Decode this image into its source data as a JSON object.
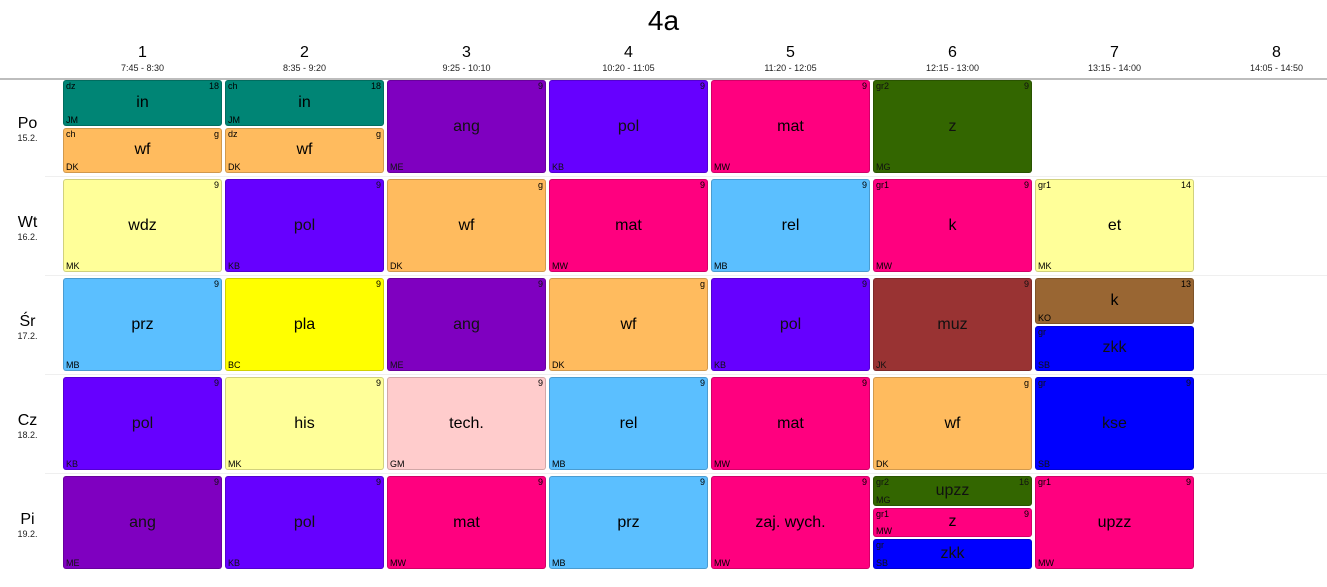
{
  "title": "4a",
  "periods": [
    {
      "num": "1",
      "time": "7:45 - 8:30"
    },
    {
      "num": "2",
      "time": "8:35 - 9:20"
    },
    {
      "num": "3",
      "time": "9:25 - 10:10"
    },
    {
      "num": "4",
      "time": "10:20 - 11:05"
    },
    {
      "num": "5",
      "time": "11:20 - 12:05"
    },
    {
      "num": "6",
      "time": "12:15 - 13:00"
    },
    {
      "num": "7",
      "time": "13:15 - 14:00"
    },
    {
      "num": "8",
      "time": "14:05 - 14:50"
    }
  ],
  "days": [
    {
      "name": "Po",
      "date": "15.2."
    },
    {
      "name": "Wt",
      "date": "16.2."
    },
    {
      "name": "Śr",
      "date": "17.2."
    },
    {
      "name": "Cz",
      "date": "18.2."
    },
    {
      "name": "Pi",
      "date": "19.2."
    }
  ],
  "lessons": [
    {
      "day": 0,
      "period": 0,
      "part": 0,
      "parts": 2,
      "subject": "in",
      "group": "dz",
      "room": "18",
      "teacher": "JM",
      "color": "#008575"
    },
    {
      "day": 0,
      "period": 0,
      "part": 1,
      "parts": 2,
      "subject": "wf",
      "group": "ch",
      "room": "g",
      "teacher": "DK",
      "color": "#ffbb5e"
    },
    {
      "day": 0,
      "period": 1,
      "part": 0,
      "parts": 2,
      "subject": "in",
      "group": "ch",
      "room": "18",
      "teacher": "JM",
      "color": "#008575"
    },
    {
      "day": 0,
      "period": 1,
      "part": 1,
      "parts": 2,
      "subject": "wf",
      "group": "dz",
      "room": "g",
      "teacher": "DK",
      "color": "#ffbb5e"
    },
    {
      "day": 0,
      "period": 2,
      "part": 0,
      "parts": 1,
      "subject": "ang",
      "group": "",
      "room": "9",
      "teacher": "ME",
      "color": "#7f00c0"
    },
    {
      "day": 0,
      "period": 3,
      "part": 0,
      "parts": 1,
      "subject": "pol",
      "group": "",
      "room": "9",
      "teacher": "KB",
      "color": "#6600ff"
    },
    {
      "day": 0,
      "period": 4,
      "part": 0,
      "parts": 1,
      "subject": "mat",
      "group": "",
      "room": "9",
      "teacher": "MW",
      "color": "#ff007f"
    },
    {
      "day": 0,
      "period": 5,
      "part": 0,
      "parts": 1,
      "subject": "z",
      "group": "gr2",
      "room": "9",
      "teacher": "MG",
      "color": "#336600"
    },
    {
      "day": 1,
      "period": 0,
      "part": 0,
      "parts": 1,
      "subject": "wdz",
      "group": "",
      "room": "9",
      "teacher": "MK",
      "color": "#ffff99"
    },
    {
      "day": 1,
      "period": 1,
      "part": 0,
      "parts": 1,
      "subject": "pol",
      "group": "",
      "room": "9",
      "teacher": "KB",
      "color": "#6600ff"
    },
    {
      "day": 1,
      "period": 2,
      "part": 0,
      "parts": 1,
      "subject": "wf",
      "group": "",
      "room": "g",
      "teacher": "DK",
      "color": "#ffbb5e"
    },
    {
      "day": 1,
      "period": 3,
      "part": 0,
      "parts": 1,
      "subject": "mat",
      "group": "",
      "room": "9",
      "teacher": "MW",
      "color": "#ff007f"
    },
    {
      "day": 1,
      "period": 4,
      "part": 0,
      "parts": 1,
      "subject": "rel",
      "group": "",
      "room": "9",
      "teacher": "MB",
      "color": "#5bbfff"
    },
    {
      "day": 1,
      "period": 5,
      "part": 0,
      "parts": 1,
      "subject": "k",
      "group": "gr1",
      "room": "9",
      "teacher": "MW",
      "color": "#ff007f"
    },
    {
      "day": 1,
      "period": 6,
      "part": 0,
      "parts": 1,
      "subject": "et",
      "group": "gr1",
      "room": "14",
      "teacher": "MK",
      "color": "#ffff99"
    },
    {
      "day": 2,
      "period": 0,
      "part": 0,
      "parts": 1,
      "subject": "prz",
      "group": "",
      "room": "9",
      "teacher": "MB",
      "color": "#5bbfff"
    },
    {
      "day": 2,
      "period": 1,
      "part": 0,
      "parts": 1,
      "subject": "pla",
      "group": "",
      "room": "9",
      "teacher": "BC",
      "color": "#ffff00"
    },
    {
      "day": 2,
      "period": 2,
      "part": 0,
      "parts": 1,
      "subject": "ang",
      "group": "",
      "room": "9",
      "teacher": "ME",
      "color": "#7f00c0"
    },
    {
      "day": 2,
      "period": 3,
      "part": 0,
      "parts": 1,
      "subject": "wf",
      "group": "",
      "room": "g",
      "teacher": "DK",
      "color": "#ffbb5e"
    },
    {
      "day": 2,
      "period": 4,
      "part": 0,
      "parts": 1,
      "subject": "pol",
      "group": "",
      "room": "9",
      "teacher": "KB",
      "color": "#6600ff"
    },
    {
      "day": 2,
      "period": 5,
      "part": 0,
      "parts": 1,
      "subject": "muz",
      "group": "",
      "room": "9",
      "teacher": "JK",
      "color": "#993333"
    },
    {
      "day": 2,
      "period": 6,
      "part": 0,
      "parts": 2,
      "subject": "k",
      "group": "",
      "room": "13",
      "teacher": "KO",
      "color": "#996633"
    },
    {
      "day": 2,
      "period": 6,
      "part": 1,
      "parts": 2,
      "subject": "zkk",
      "group": "gr",
      "room": "",
      "teacher": "SB",
      "color": "#0000ff"
    },
    {
      "day": 3,
      "period": 0,
      "part": 0,
      "parts": 1,
      "subject": "pol",
      "group": "",
      "room": "9",
      "teacher": "KB",
      "color": "#6600ff"
    },
    {
      "day": 3,
      "period": 1,
      "part": 0,
      "parts": 1,
      "subject": "his",
      "group": "",
      "room": "9",
      "teacher": "MK",
      "color": "#ffff99"
    },
    {
      "day": 3,
      "period": 2,
      "part": 0,
      "parts": 1,
      "subject": "tech.",
      "group": "",
      "room": "9",
      "teacher": "GM",
      "color": "#ffcccc"
    },
    {
      "day": 3,
      "period": 3,
      "part": 0,
      "parts": 1,
      "subject": "rel",
      "group": "",
      "room": "9",
      "teacher": "MB",
      "color": "#5bbfff"
    },
    {
      "day": 3,
      "period": 4,
      "part": 0,
      "parts": 1,
      "subject": "mat",
      "group": "",
      "room": "9",
      "teacher": "MW",
      "color": "#ff007f"
    },
    {
      "day": 3,
      "period": 5,
      "part": 0,
      "parts": 1,
      "subject": "wf",
      "group": "",
      "room": "g",
      "teacher": "DK",
      "color": "#ffbb5e"
    },
    {
      "day": 3,
      "period": 6,
      "part": 0,
      "parts": 1,
      "subject": "kse",
      "group": "gr",
      "room": "9",
      "teacher": "SB",
      "color": "#0000ff"
    },
    {
      "day": 4,
      "period": 0,
      "part": 0,
      "parts": 1,
      "subject": "ang",
      "group": "",
      "room": "9",
      "teacher": "ME",
      "color": "#7f00c0"
    },
    {
      "day": 4,
      "period": 1,
      "part": 0,
      "parts": 1,
      "subject": "pol",
      "group": "",
      "room": "9",
      "teacher": "KB",
      "color": "#6600ff"
    },
    {
      "day": 4,
      "period": 2,
      "part": 0,
      "parts": 1,
      "subject": "mat",
      "group": "",
      "room": "9",
      "teacher": "MW",
      "color": "#ff007f"
    },
    {
      "day": 4,
      "period": 3,
      "part": 0,
      "parts": 1,
      "subject": "prz",
      "group": "",
      "room": "9",
      "teacher": "MB",
      "color": "#5bbfff"
    },
    {
      "day": 4,
      "period": 4,
      "part": 0,
      "parts": 1,
      "subject": "zaj. wych.",
      "group": "",
      "room": "9",
      "teacher": "MW",
      "color": "#ff007f"
    },
    {
      "day": 4,
      "period": 5,
      "part": 0,
      "parts": 3,
      "subject": "upzz",
      "group": "gr2",
      "room": "16",
      "teacher": "MG",
      "color": "#336600"
    },
    {
      "day": 4,
      "period": 5,
      "part": 1,
      "parts": 3,
      "subject": "z",
      "group": "gr1",
      "room": "9",
      "teacher": "MW",
      "color": "#ff007f"
    },
    {
      "day": 4,
      "period": 5,
      "part": 2,
      "parts": 3,
      "subject": "zkk",
      "group": "gr",
      "room": "",
      "teacher": "SB",
      "color": "#0000ff"
    },
    {
      "day": 4,
      "period": 6,
      "part": 0,
      "parts": 1,
      "subject": "upzz",
      "group": "gr1",
      "room": "9",
      "teacher": "MW",
      "color": "#ff007f"
    }
  ]
}
